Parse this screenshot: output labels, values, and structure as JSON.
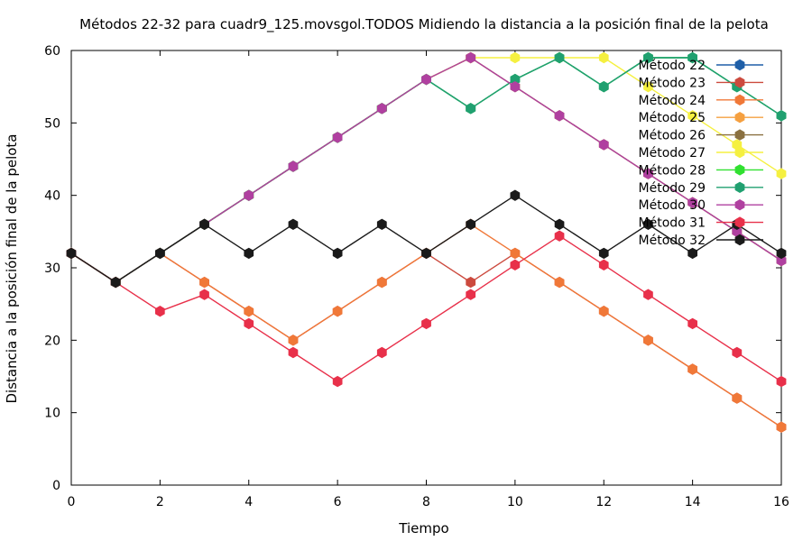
{
  "chart_data": {
    "type": "line",
    "title": "Métodos 22-32 para cuadr9_125.movsgol.TODOS Midiendo la distancia a la posición final de la pelota",
    "xlabel": "Tiempo",
    "ylabel": "Distancia a la posición final de la pelota",
    "xlim": [
      0,
      16
    ],
    "ylim": [
      0,
      60
    ],
    "xticks": [
      "0",
      "2",
      "4",
      "6",
      "8",
      "10",
      "12",
      "14",
      "16"
    ],
    "yticks": [
      "0",
      "10",
      "20",
      "30",
      "40",
      "50",
      "60"
    ],
    "grid": false,
    "legend_position": "top-right",
    "x": [
      0,
      1,
      2,
      3,
      4,
      5,
      6,
      7,
      8,
      9,
      10,
      11,
      12,
      13,
      14,
      15,
      16
    ],
    "series": [
      {
        "name": "Método 22",
        "color": "#1f5fa8",
        "values": [
          32,
          28,
          32,
          36,
          40,
          44,
          48,
          52,
          56,
          52,
          56,
          59,
          55,
          59,
          59,
          55,
          51
        ]
      },
      {
        "name": "Método 23",
        "color": "#cc4a3e",
        "values": [
          32,
          28,
          32,
          28,
          24,
          20,
          24,
          28,
          32,
          28,
          32,
          28,
          24,
          20,
          16,
          12,
          8
        ]
      },
      {
        "name": "Método 24",
        "color": "#f07838",
        "values": [
          32,
          28,
          32,
          28,
          24,
          20,
          24,
          28,
          32,
          36,
          32,
          28,
          24,
          20,
          16,
          12,
          8
        ]
      },
      {
        "name": "Método 25",
        "color": "#f5a040",
        "values": [
          32,
          28,
          32,
          36,
          40,
          44,
          48,
          52,
          56,
          59,
          55,
          51,
          47,
          43,
          39,
          35,
          31
        ]
      },
      {
        "name": "Método 26",
        "color": "#8a7040",
        "values": [
          32,
          28,
          32,
          36,
          40,
          44,
          48,
          52,
          56,
          59,
          55,
          51,
          47,
          43,
          39,
          35,
          31
        ]
      },
      {
        "name": "Método 27",
        "color": "#f5f040",
        "values": [
          32,
          28,
          32,
          36,
          40,
          44,
          48,
          52,
          56,
          59,
          59,
          59,
          59,
          55,
          51,
          47,
          43
        ]
      },
      {
        "name": "Método 28",
        "color": "#30e030",
        "values": [
          32,
          28,
          32,
          36,
          40,
          44,
          48,
          52,
          56,
          52,
          56,
          59,
          55,
          59,
          59,
          55,
          51
        ]
      },
      {
        "name": "Método 29",
        "color": "#20a070",
        "values": [
          32,
          28,
          32,
          36,
          40,
          44,
          48,
          52,
          56,
          52,
          56,
          59,
          55,
          59,
          59,
          55,
          51
        ]
      },
      {
        "name": "Método 30",
        "color": "#b040a0",
        "values": [
          32,
          28,
          32,
          36,
          40,
          44,
          48,
          52,
          56,
          59,
          55,
          51,
          47,
          43,
          39,
          35,
          31
        ]
      },
      {
        "name": "Método 31",
        "color": "#e8304a",
        "values": [
          32,
          28,
          24,
          26.3,
          22.3,
          18.3,
          14.3,
          18.3,
          22.3,
          26.3,
          30.4,
          34.4,
          30.4,
          26.3,
          22.3,
          18.3,
          14.3
        ]
      },
      {
        "name": "Método 32",
        "color": "#1a1a1a",
        "values": [
          32,
          28,
          32,
          36,
          32,
          36,
          32,
          36,
          32,
          36,
          40,
          36,
          32,
          36,
          32,
          36,
          32
        ]
      }
    ]
  }
}
